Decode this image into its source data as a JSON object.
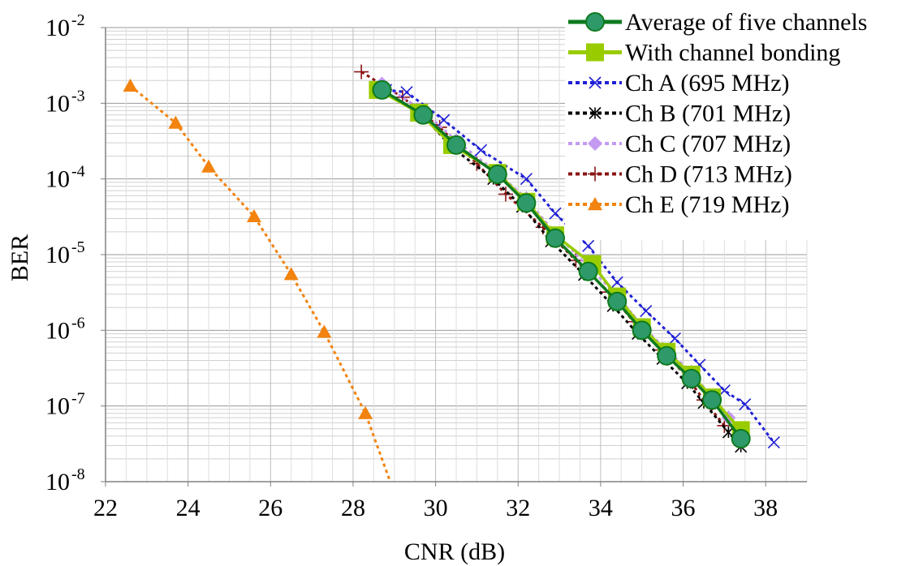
{
  "chart_data": {
    "type": "line",
    "xlabel": "CNR (dB)",
    "ylabel": "BER",
    "xlim": [
      22,
      39
    ],
    "ylim": [
      1e-08,
      0.01
    ],
    "yscale": "log",
    "grid": true,
    "legend": "top-right",
    "x_ticks": [
      "22",
      "24",
      "26",
      "28",
      "30",
      "32",
      "34",
      "36",
      "38"
    ],
    "y_ticks": [
      {
        "base": "10",
        "exp": "-8",
        "value": 1e-08
      },
      {
        "base": "10",
        "exp": "-7",
        "value": 1e-07
      },
      {
        "base": "10",
        "exp": "-6",
        "value": 1e-06
      },
      {
        "base": "10",
        "exp": "-5",
        "value": 1e-05
      },
      {
        "base": "10",
        "exp": "-4",
        "value": 0.0001
      },
      {
        "base": "10",
        "exp": "-3",
        "value": 0.001
      },
      {
        "base": "10",
        "exp": "-2",
        "value": 0.01
      }
    ],
    "series": [
      {
        "name": "Average of five channels",
        "color": "#0e7a1e",
        "marker": "circle",
        "dash": "solid",
        "x": [
          28.7,
          29.7,
          30.5,
          31.5,
          32.2,
          32.9,
          33.7,
          34.4,
          35.0,
          35.6,
          36.2,
          36.7,
          37.4
        ],
        "y": [
          0.0015,
          0.0007,
          0.00028,
          0.000115,
          4.8e-05,
          1.65e-05,
          6e-06,
          2.4e-06,
          1e-06,
          4.6e-07,
          2.3e-07,
          1.2e-07,
          3.7e-08
        ]
      },
      {
        "name": "With channel bonding",
        "color": "#99cc00",
        "marker": "square",
        "dash": "solid",
        "x": [
          28.6,
          29.6,
          30.4,
          31.5,
          32.2,
          32.9,
          33.8,
          34.4,
          35.0,
          35.6,
          36.2,
          36.7,
          37.4
        ],
        "y": [
          0.0015,
          0.00075,
          0.00028,
          0.00012,
          5e-05,
          1.8e-05,
          7.5e-06,
          2.8e-06,
          1.1e-06,
          5.2e-07,
          2.6e-07,
          1.3e-07,
          4.8e-08
        ]
      },
      {
        "name": "Ch A (695 MHz)",
        "color": "#1f1fd6",
        "marker": "x",
        "dash": "dot",
        "x": [
          28.8,
          29.3,
          30.2,
          31.1,
          32.2,
          32.9,
          33.7,
          34.4,
          35.1,
          35.8,
          36.4,
          37.0,
          37.5,
          38.2
        ],
        "y": [
          0.0015,
          0.0014,
          0.0006,
          0.00024,
          0.0001,
          3.5e-05,
          1.3e-05,
          4.3e-06,
          1.8e-06,
          7.8e-07,
          3.5e-07,
          1.6e-07,
          1.05e-07,
          3.3e-08
        ]
      },
      {
        "name": "Ch B (701 MHz)",
        "color": "#000000",
        "marker": "asterisk",
        "dash": "dot",
        "x": [
          28.7,
          29.7,
          30.4,
          31.4,
          32.1,
          32.8,
          33.6,
          34.3,
          34.9,
          35.5,
          36.1,
          36.5,
          37.1,
          37.4
        ],
        "y": [
          0.0015,
          0.00068,
          0.00026,
          0.0001,
          4.3e-05,
          1.5e-05,
          5.4e-06,
          2.1e-06,
          9e-07,
          4.2e-07,
          2e-07,
          1.1e-07,
          4.5e-08,
          2.9e-08
        ]
      },
      {
        "name": "Ch C (707 MHz)",
        "color": "#c49af2",
        "marker": "diamond",
        "dash": "dot",
        "x": [
          28.7,
          29.7,
          30.5,
          31.5,
          32.2,
          32.9,
          33.7,
          34.4,
          35.0,
          35.6,
          36.2,
          36.7,
          37.1
        ],
        "y": [
          0.0018,
          0.0008,
          0.00032,
          0.00012,
          5.5e-05,
          1.9e-05,
          7e-06,
          2.9e-06,
          1.15e-06,
          5.5e-07,
          2.8e-07,
          1.3e-07,
          7e-08
        ]
      },
      {
        "name": "Ch D (713 MHz)",
        "color": "#8b1414",
        "marker": "plus",
        "dash": "dot",
        "x": [
          28.2,
          29.2,
          30.1,
          31.0,
          31.7,
          32.6,
          33.4,
          34.2,
          34.8,
          35.5,
          36.1,
          36.5,
          37.0
        ],
        "y": [
          0.0026,
          0.0012,
          0.00048,
          0.00016,
          6.3e-05,
          2.3e-05,
          8.4e-06,
          3.2e-06,
          1.3e-06,
          5.5e-07,
          2.4e-07,
          1.2e-07,
          5.5e-08
        ]
      },
      {
        "name": "Ch E (719 MHz)",
        "color": "#f2830f",
        "marker": "triangle",
        "dash": "dot",
        "x": [
          22.6,
          23.7,
          24.5,
          25.6,
          26.5,
          27.3,
          28.3,
          28.9
        ],
        "y": [
          0.0017,
          0.00055,
          0.000145,
          3.2e-05,
          5.5e-06,
          9.5e-07,
          8e-08,
          1e-08
        ],
        "marker_count": 7
      }
    ]
  }
}
